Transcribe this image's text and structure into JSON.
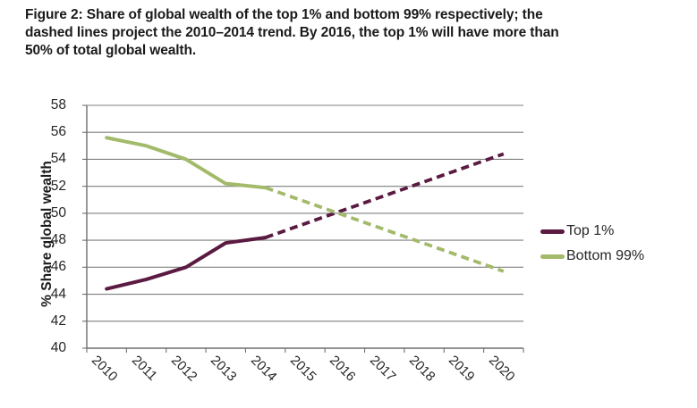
{
  "figure": {
    "title_lines": [
      "Figure 2: Share of global wealth of the top 1% and bottom 99% respectively; the",
      "dashed lines project the 2010–2014 trend. By 2016, the top 1% will have more than",
      "50% of total global wealth."
    ]
  },
  "chart_data": {
    "type": "line",
    "title": "Figure 2: Share of global wealth of the top 1% and bottom 99% respectively; the dashed lines project the 2010–2014 trend. By 2016, the top 1% will have more than 50% of total global wealth.",
    "xlabel": "",
    "ylabel": "% Share global wealth",
    "ylim": [
      40,
      58
    ],
    "ytick_step": 2,
    "y_tick_labels": [
      "58",
      "56",
      "54",
      "52",
      "50",
      "48",
      "46",
      "44",
      "42",
      "40"
    ],
    "x_tick_labels": [
      "2010",
      "2011",
      "2012",
      "2013",
      "2014",
      "2015",
      "2016",
      "2017",
      "2018",
      "2019",
      "2020"
    ],
    "grid": "horizontal",
    "legend_position": "right-middle",
    "series": [
      {
        "name": "Top 1%",
        "role": "actual",
        "style": "solid",
        "color": "#5b1a41",
        "x": [
          2010,
          2011,
          2012,
          2013,
          2014
        ],
        "values": [
          44.4,
          45.1,
          46.0,
          47.8,
          48.2
        ]
      },
      {
        "name": "Top 1% projection",
        "role": "projection",
        "style": "dashed",
        "color": "#5b1a41",
        "x": [
          2014,
          2020
        ],
        "values": [
          48.2,
          54.4
        ]
      },
      {
        "name": "Bottom 99%",
        "role": "actual",
        "style": "solid",
        "color": "#a3ba6b",
        "x": [
          2010,
          2011,
          2012,
          2013,
          2014
        ],
        "values": [
          55.6,
          55.0,
          54.0,
          52.2,
          51.9
        ]
      },
      {
        "name": "Bottom 99% projection",
        "role": "projection",
        "style": "dashed",
        "color": "#a3ba6b",
        "x": [
          2014,
          2020
        ],
        "values": [
          51.9,
          45.7
        ]
      }
    ],
    "legend": [
      {
        "label": "Top 1%",
        "color": "#5b1a41"
      },
      {
        "label": "Bottom 99%",
        "color": "#a3ba6b"
      }
    ]
  },
  "colors": {
    "top1": "#5b1a41",
    "bottom99": "#a3ba6b",
    "gridline": "#7f7f7f",
    "axis": "#6e6e6e",
    "text": "#262626"
  }
}
